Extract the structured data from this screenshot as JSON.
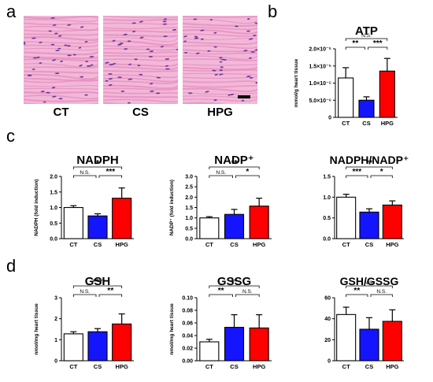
{
  "panels": {
    "a": {
      "letter": "a",
      "labels": [
        "CT",
        "CS",
        "HPG"
      ]
    },
    "b": {
      "letter": "b"
    },
    "c": {
      "letter": "c"
    },
    "d": {
      "letter": "d"
    }
  },
  "colors": {
    "ct": "#ffffff",
    "cs": "#1414ff",
    "hpg": "#ff0000",
    "histo_bg": "#f2b8d8",
    "histo_fiber": "#e58fc0",
    "nucleus": "#6a3a9a"
  },
  "chart_data": [
    {
      "id": "atp",
      "type": "bar",
      "title": "ATP",
      "ylabel": "mmol/g heart tissue",
      "categories": [
        "CT",
        "CS",
        "HPG"
      ],
      "values": [
        1.15e-05,
        5e-06,
        1.35e-05
      ],
      "errors": [
        3e-06,
        1e-06,
        3.7e-06
      ],
      "ylim": [
        0,
        2e-05
      ],
      "yticks": [
        0,
        5e-06,
        1e-05,
        1.5e-05,
        2e-05
      ],
      "yticklabels": [
        "0",
        "5.0×10⁻⁶",
        "1.0×10⁻⁵",
        "1.5×10⁻⁵",
        "2.0×10⁻⁵"
      ],
      "sig": [
        {
          "from": 0,
          "to": 2,
          "label": "N.S."
        },
        {
          "from": 0,
          "to": 1,
          "label": "**"
        },
        {
          "from": 1,
          "to": 2,
          "label": "***"
        }
      ]
    },
    {
      "id": "nadph",
      "type": "bar",
      "title": "NADPH",
      "ylabel": "NADPH (fold induction)",
      "categories": [
        "CT",
        "CS",
        "HPG"
      ],
      "values": [
        1.0,
        0.73,
        1.3
      ],
      "errors": [
        0.06,
        0.07,
        0.33
      ],
      "ylim": [
        0,
        2.0
      ],
      "yticks": [
        0,
        0.5,
        1.0,
        1.5,
        2.0
      ],
      "yticklabels": [
        "0.0",
        "0.5",
        "1.0",
        "1.5",
        "2.0"
      ],
      "sig": [
        {
          "from": 0,
          "to": 2,
          "label": "*"
        },
        {
          "from": 0,
          "to": 1,
          "label": "N.S."
        },
        {
          "from": 1,
          "to": 2,
          "label": "***"
        }
      ]
    },
    {
      "id": "nadp",
      "type": "bar",
      "title": "NADP⁺",
      "ylabel": "NADP⁺ (fold induction)",
      "categories": [
        "CT",
        "CS",
        "HPG"
      ],
      "values": [
        1.0,
        1.17,
        1.57
      ],
      "errors": [
        0.06,
        0.24,
        0.38
      ],
      "ylim": [
        0,
        3.0
      ],
      "yticks": [
        0,
        0.5,
        1.0,
        1.5,
        2.0,
        2.5,
        3.0
      ],
      "yticklabels": [
        "0.0",
        "0.5",
        "1.0",
        "1.5",
        "2.0",
        "2.5",
        "3.0"
      ],
      "sig": [
        {
          "from": 0,
          "to": 2,
          "label": "**"
        },
        {
          "from": 0,
          "to": 1,
          "label": "N.S."
        },
        {
          "from": 1,
          "to": 2,
          "label": "*"
        }
      ]
    },
    {
      "id": "ratio_nadph",
      "type": "bar",
      "title": "NADPH/NADP⁺",
      "ylabel": "",
      "categories": [
        "CT",
        "CS",
        "HPG"
      ],
      "values": [
        1.0,
        0.64,
        0.81
      ],
      "errors": [
        0.07,
        0.08,
        0.1
      ],
      "ylim": [
        0,
        1.5
      ],
      "yticks": [
        0,
        0.5,
        1.0,
        1.5
      ],
      "yticklabels": [
        "0.0",
        "0.5",
        "1.0",
        "1.5"
      ],
      "sig": [
        {
          "from": 0,
          "to": 2,
          "label": "**"
        },
        {
          "from": 0,
          "to": 1,
          "label": "***"
        },
        {
          "from": 1,
          "to": 2,
          "label": "*"
        }
      ]
    },
    {
      "id": "gsh",
      "type": "bar",
      "title": "GSH",
      "ylabel": "nmol/mg heart tissue",
      "categories": [
        "CT",
        "CS",
        "HPG"
      ],
      "values": [
        1.28,
        1.38,
        1.75
      ],
      "errors": [
        0.1,
        0.15,
        0.48
      ],
      "ylim": [
        0,
        3
      ],
      "yticks": [
        0,
        1,
        2,
        3
      ],
      "yticklabels": [
        "0",
        "1",
        "2",
        "3"
      ],
      "sig": [
        {
          "from": 0,
          "to": 2,
          "label": "***"
        },
        {
          "from": 0,
          "to": 1,
          "label": "N.S."
        },
        {
          "from": 1,
          "to": 2,
          "label": "**"
        }
      ]
    },
    {
      "id": "gssg",
      "type": "bar",
      "title": "GSSG",
      "ylabel": "nmol/mg heart tissue",
      "categories": [
        "CT",
        "CS",
        "HPG"
      ],
      "values": [
        0.03,
        0.053,
        0.052
      ],
      "errors": [
        0.004,
        0.02,
        0.021
      ],
      "ylim": [
        0,
        0.1
      ],
      "yticks": [
        0,
        0.02,
        0.04,
        0.06,
        0.08,
        0.1
      ],
      "yticklabels": [
        "0.00",
        "0.02",
        "0.04",
        "0.06",
        "0.08",
        "0.10"
      ],
      "sig": [
        {
          "from": 0,
          "to": 2,
          "label": "**"
        },
        {
          "from": 0,
          "to": 1,
          "label": "**"
        },
        {
          "from": 1,
          "to": 2,
          "label": "N.S."
        }
      ]
    },
    {
      "id": "ratio_gsh",
      "type": "bar",
      "title": "GSH/GSSG",
      "ylabel": "",
      "categories": [
        "CT",
        "CS",
        "HPG"
      ],
      "values": [
        44,
        30,
        37.5
      ],
      "errors": [
        7,
        11,
        11
      ],
      "ylim": [
        0,
        60
      ],
      "yticks": [
        0,
        20,
        40,
        60
      ],
      "yticklabels": [
        "0",
        "20",
        "40",
        "60"
      ],
      "sig": [
        {
          "from": 0,
          "to": 2,
          "label": "N.S."
        },
        {
          "from": 0,
          "to": 1,
          "label": "**"
        },
        {
          "from": 1,
          "to": 2,
          "label": "N.S."
        }
      ]
    }
  ]
}
